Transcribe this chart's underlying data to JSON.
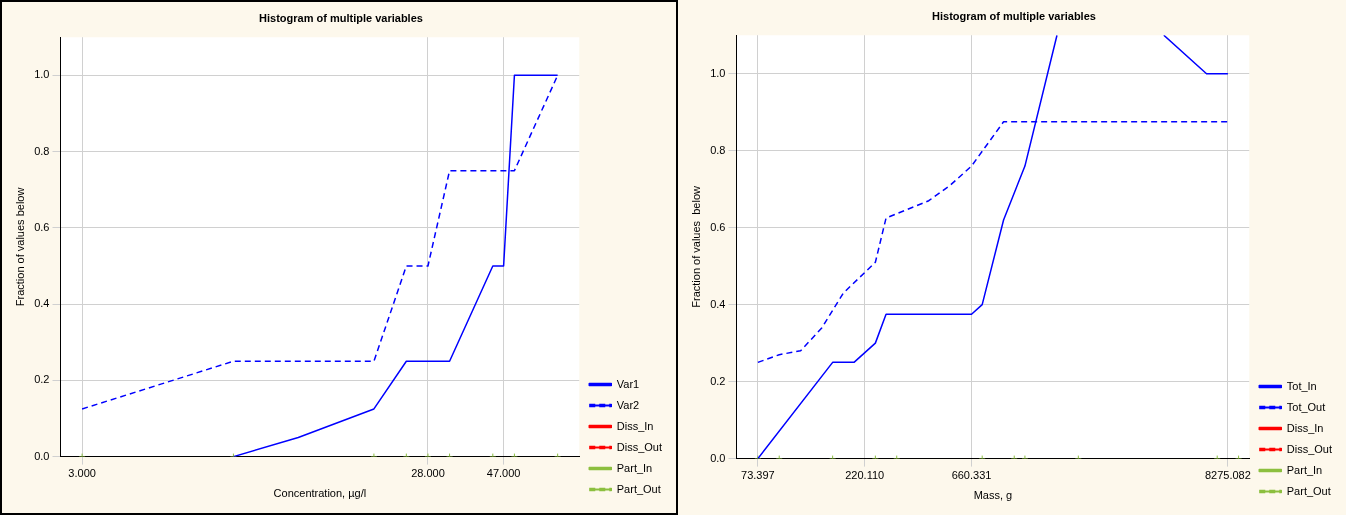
{
  "chart_data": [
    {
      "type": "line",
      "title": "Histogram of multiple variables",
      "xlabel": "Concentration, µg/l",
      "ylabel": "Fraction of values below",
      "categories": [
        null,
        null,
        "3.000",
        null,
        null,
        null,
        null,
        null,
        null,
        null,
        null,
        null,
        null,
        null,
        null,
        null,
        null,
        null,
        null,
        null,
        null,
        null,
        null,
        null,
        null,
        null,
        null,
        null,
        null,
        null,
        null,
        null,
        null,
        null,
        "28.000",
        null,
        null,
        null,
        null,
        null,
        null,
        "47.000",
        null,
        null,
        null,
        null,
        null,
        null,
        null
      ],
      "ylim": [
        0,
        1.1
      ],
      "yticks": [
        {
          "value": 0,
          "label": "0.0"
        },
        {
          "value": 0.2,
          "label": "0.2"
        },
        {
          "value": 0.4,
          "label": "0.4"
        },
        {
          "value": 0.6,
          "label": "0.6"
        },
        {
          "value": 0.8,
          "label": "0.8"
        },
        {
          "value": 1,
          "label": "1.0"
        }
      ],
      "grid": true,
      "legend": "bottom right",
      "marker": "none",
      "series": [
        {
          "name": "Var1",
          "color": "#0000ff",
          "line_style": "solid",
          "values": [
            null,
            null,
            null,
            null,
            null,
            null,
            null,
            null,
            null,
            null,
            null,
            null,
            null,
            null,
            null,
            null,
            0,
            null,
            null,
            null,
            null,
            null,
            0.05,
            null,
            null,
            null,
            null,
            null,
            null,
            0.125,
            null,
            null,
            0.25,
            null,
            null,
            null,
            0.25,
            null,
            null,
            null,
            0.5,
            0.5,
            1.0,
            null,
            null,
            null,
            1.0,
            null,
            null
          ]
        },
        {
          "name": "Var2",
          "color": "#0000ff",
          "line_style": "dashed",
          "values": [
            null,
            null,
            0.125,
            null,
            null,
            null,
            null,
            null,
            null,
            null,
            null,
            null,
            null,
            null,
            null,
            null,
            0.25,
            null,
            null,
            null,
            null,
            null,
            null,
            null,
            null,
            null,
            null,
            null,
            null,
            0.25,
            null,
            null,
            0.5,
            null,
            0.5,
            null,
            0.75,
            null,
            null,
            null,
            null,
            null,
            0.75,
            null,
            null,
            null,
            1.0,
            null,
            null
          ]
        },
        {
          "name": "Diss_In",
          "color": "#ff0000",
          "line_style": "solid",
          "values": [
            null,
            null,
            null,
            null,
            null,
            null,
            null,
            null,
            null,
            null,
            null,
            null,
            null,
            null,
            null,
            null,
            null,
            null,
            null,
            null,
            null,
            null,
            null,
            null,
            null,
            null,
            null,
            null,
            null,
            null,
            null,
            null,
            null,
            null,
            null,
            null,
            null,
            null,
            null,
            null,
            null,
            null,
            null,
            null,
            null,
            null,
            null,
            null,
            null
          ]
        },
        {
          "name": "Diss_Out",
          "color": "#ff0000",
          "line_style": "dashed",
          "values": [
            null,
            null,
            null,
            null,
            null,
            null,
            null,
            null,
            null,
            null,
            null,
            null,
            null,
            null,
            null,
            null,
            null,
            null,
            null,
            null,
            null,
            null,
            null,
            null,
            null,
            null,
            null,
            null,
            null,
            null,
            null,
            null,
            null,
            null,
            null,
            null,
            null,
            null,
            null,
            null,
            null,
            null,
            null,
            null,
            null,
            null,
            null,
            null,
            null
          ]
        },
        {
          "name": "Part_In",
          "type": "scatter",
          "marker": "cross",
          "color": "#8cbf3f",
          "line_style": "solid",
          "values": [
            null,
            null,
            0,
            null,
            null,
            null,
            null,
            null,
            null,
            null,
            null,
            null,
            null,
            null,
            null,
            null,
            0,
            null,
            null,
            null,
            null,
            null,
            null,
            null,
            null,
            null,
            null,
            null,
            null,
            0,
            null,
            null,
            0,
            null,
            0,
            null,
            0,
            null,
            null,
            null,
            null,
            null,
            null,
            null,
            null,
            null,
            null,
            null,
            null
          ]
        },
        {
          "name": "Part_Out",
          "type": "scatter",
          "marker": "cross",
          "color": "#8cbf3f",
          "line_style": "dashed",
          "values": [
            null,
            null,
            null,
            null,
            null,
            null,
            null,
            null,
            null,
            null,
            null,
            null,
            null,
            null,
            null,
            null,
            null,
            null,
            null,
            null,
            null,
            null,
            null,
            null,
            null,
            null,
            null,
            null,
            null,
            null,
            null,
            null,
            null,
            null,
            null,
            null,
            null,
            null,
            null,
            null,
            0,
            null,
            0,
            null,
            null,
            null,
            0,
            null,
            null
          ]
        }
      ]
    },
    {
      "type": "line",
      "title": "Histogram of multiple variables",
      "xlabel": "Mass, g",
      "ylabel": "Fraction of values  below",
      "categories": [
        null,
        null,
        "73.397",
        null,
        null,
        null,
        null,
        null,
        null,
        null,
        null,
        null,
        "220.110",
        null,
        null,
        null,
        null,
        null,
        null,
        null,
        null,
        null,
        "660.331",
        null,
        null,
        null,
        null,
        null,
        null,
        null,
        null,
        null,
        null,
        null,
        null,
        null,
        null,
        null,
        null,
        null,
        null,
        null,
        null,
        null,
        null,
        null,
        "8275.082",
        null,
        null
      ],
      "ylim": [
        0,
        1.1
      ],
      "yticks": [
        {
          "value": 0,
          "label": "0.0"
        },
        {
          "value": 0.2,
          "label": "0.2"
        },
        {
          "value": 0.4,
          "label": "0.4"
        },
        {
          "value": 0.6,
          "label": "0.6"
        },
        {
          "value": 0.8,
          "label": "0.8"
        },
        {
          "value": 1,
          "label": "1.0"
        }
      ],
      "grid": true,
      "legend": "bottom right",
      "marker": "none",
      "series": [
        {
          "name": "Tot_In",
          "color": "#0000ff",
          "line_style": "solid",
          "values": [
            null,
            null,
            0,
            null,
            null,
            null,
            null,
            null,
            null,
            0.25,
            null,
            0.25,
            null,
            0.3,
            0.375,
            null,
            null,
            null,
            null,
            null,
            null,
            null,
            0.375,
            0.4,
            null,
            0.62,
            null,
            0.76,
            null,
            null,
            1.1,
            null,
            null,
            null,
            null,
            null,
            null,
            null,
            null,
            null,
            null,
            null,
            null,
            null,
            null,
            null,
            null,
            null,
            null
          ]
        },
        {
          "color": "#0000ff",
          "line_style": "solid",
          "values": [
            null,
            null,
            null,
            null,
            null,
            null,
            null,
            null,
            null,
            null,
            null,
            null,
            null,
            null,
            null,
            null,
            null,
            null,
            null,
            null,
            null,
            null,
            null,
            null,
            null,
            null,
            null,
            null,
            null,
            null,
            null,
            null,
            null,
            null,
            null,
            null,
            null,
            null,
            null,
            null,
            1.1,
            null,
            null,
            null,
            1.0,
            null,
            1.0,
            null,
            null
          ]
        },
        {
          "name": "Tot_Out",
          "color": "#0000ff",
          "line_style": "dashed",
          "values": [
            null,
            null,
            0.25,
            null,
            0.27,
            null,
            0.28,
            null,
            0.34,
            null,
            0.43,
            null,
            null,
            0.51,
            0.625,
            null,
            null,
            null,
            0.67,
            null,
            0.71,
            null,
            0.76,
            null,
            null,
            0.875,
            null,
            null,
            null,
            null,
            null,
            null,
            null,
            null,
            null,
            null,
            null,
            null,
            null,
            null,
            null,
            null,
            null,
            null,
            null,
            null,
            0.875,
            null,
            null
          ]
        },
        {
          "name": "Diss_In",
          "color": "#ff0000",
          "line_style": "solid",
          "values": [
            null,
            null,
            null,
            null,
            null,
            null,
            null,
            null,
            null,
            null,
            null,
            null,
            null,
            null,
            null,
            null,
            null,
            null,
            null,
            null,
            null,
            null,
            null,
            null,
            null,
            null,
            null,
            null,
            null,
            null,
            null,
            null,
            null,
            null,
            null,
            null,
            null,
            null,
            null,
            null,
            null,
            null,
            null,
            null,
            null,
            null,
            null,
            null,
            null
          ]
        },
        {
          "name": "Diss_Out",
          "color": "#ff0000",
          "line_style": "dashed",
          "values": [
            null,
            null,
            null,
            null,
            null,
            null,
            null,
            null,
            null,
            null,
            null,
            null,
            null,
            null,
            null,
            null,
            null,
            null,
            null,
            null,
            null,
            null,
            null,
            null,
            null,
            null,
            null,
            null,
            null,
            null,
            null,
            null,
            null,
            null,
            null,
            null,
            null,
            null,
            null,
            null,
            null,
            null,
            null,
            null,
            null,
            null,
            null,
            null,
            null
          ]
        },
        {
          "name": "Part_In",
          "type": "scatter",
          "marker": "cross",
          "color": "#8cbf3f",
          "line_style": "solid",
          "values": [
            null,
            null,
            0,
            null,
            0,
            null,
            null,
            null,
            null,
            0,
            null,
            null,
            null,
            0,
            null,
            0,
            null,
            null,
            null,
            null,
            null,
            null,
            null,
            0,
            null,
            null,
            null,
            null,
            null,
            null,
            null,
            null,
            null,
            null,
            null,
            null,
            null,
            null,
            null,
            null,
            null,
            null,
            null,
            null,
            null,
            null,
            null,
            null,
            null
          ]
        },
        {
          "name": "Part_Out",
          "type": "scatter",
          "marker": "cross",
          "color": "#8cbf3f",
          "line_style": "dashed",
          "values": [
            null,
            null,
            null,
            null,
            null,
            null,
            null,
            null,
            null,
            null,
            null,
            null,
            null,
            null,
            null,
            null,
            null,
            null,
            null,
            null,
            null,
            null,
            null,
            null,
            null,
            null,
            0,
            0,
            null,
            null,
            null,
            null,
            0,
            null,
            null,
            null,
            null,
            null,
            null,
            null,
            null,
            null,
            null,
            null,
            null,
            0,
            null,
            0,
            null
          ]
        }
      ]
    }
  ]
}
